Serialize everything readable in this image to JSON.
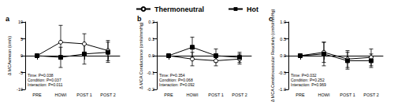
{
  "chart_data": [
    {
      "type": "line",
      "title": "a",
      "y_label": "Δ MCAvmean (cm/s)",
      "categories": [
        "PRE",
        "HOWI",
        "POST 1",
        "POST 2"
      ],
      "series": [
        {
          "name": "Thermoneutral",
          "color": "#000000",
          "marker": "circle_open",
          "values": [
            0,
            4,
            3.5,
            1.5
          ],
          "errors": [
            0,
            5,
            3,
            3
          ]
        },
        {
          "name": "Hot",
          "color": "#000000",
          "marker": "square",
          "values": [
            0,
            -0.5,
            0.5,
            1
          ],
          "errors": [
            0,
            3,
            3,
            3
          ]
        }
      ],
      "ylim": [
        -10,
        10
      ],
      "yticks": [
        -10,
        -5,
        0,
        5,
        10
      ],
      "grid": false,
      "legend": "top",
      "annotations": [
        "Time: P=0.038",
        "Condition: P=0.037",
        "Interaction: P=0.011"
      ]
    },
    {
      "type": "line",
      "title": "b",
      "y_label": "Δ MCA Conductance (cm/s/mmHg)",
      "categories": [
        "PRE",
        "HOWI",
        "POST 1",
        "POST 2"
      ],
      "series": [
        {
          "name": "Thermoneutral",
          "color": "#000000",
          "marker": "circle_open",
          "values": [
            0,
            -0.02,
            -0.03,
            -0.02
          ],
          "errors": [
            0,
            0.04,
            0.03,
            0.03
          ]
        },
        {
          "name": "Hot",
          "color": "#000000",
          "marker": "square",
          "values": [
            0,
            0.05,
            0.0,
            -0.01
          ],
          "errors": [
            0,
            0.06,
            0.04,
            0.03
          ]
        }
      ],
      "ylim": [
        -0.2,
        0.2
      ],
      "yticks": [
        -0.2,
        -0.1,
        {
          "value": 0,
          "label": "0.0"
        },
        0.1,
        0.2
      ],
      "grid": false,
      "annotations": [
        "Time: P=0.354",
        "Condition: P=0.068",
        "Interaction: P=0.092"
      ]
    },
    {
      "type": "line",
      "title": "c",
      "y_label": "Δ MCA Cerebrovascular Reactivity (cm/s/mmHg)",
      "categories": [
        "PRE",
        "HOWI",
        "POST 1",
        "POST 2"
      ],
      "series": [
        {
          "name": "Thermoneutral",
          "color": "#000000",
          "marker": "circle_open",
          "values": [
            0,
            0.1,
            -0.1,
            -0.05
          ],
          "errors": [
            0,
            0.3,
            0.25,
            0.25
          ]
        },
        {
          "name": "Hot",
          "color": "#000000",
          "marker": "square",
          "values": [
            0,
            0.05,
            -0.15,
            -0.15
          ],
          "errors": [
            0,
            0.35,
            0.25,
            0.2
          ]
        }
      ],
      "ylim": [
        -1,
        1
      ],
      "yticks": [
        {
          "value": -1,
          "label": "-1.0"
        },
        -0.5,
        {
          "value": 0,
          "label": "0.0"
        },
        0.5,
        {
          "value": 1,
          "label": "1.0"
        }
      ],
      "grid": false,
      "annotations": [
        "Time: P=0.032",
        "Condition: P=0.252",
        "Interaction: P=0.969"
      ]
    }
  ]
}
